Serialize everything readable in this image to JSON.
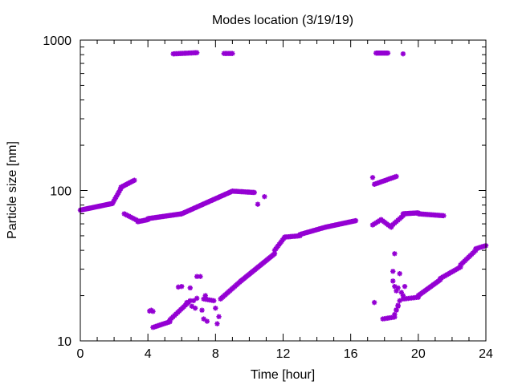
{
  "chart_data": {
    "type": "scatter",
    "title": "Modes location (3/19/19)",
    "xlabel": "Time [hour]",
    "ylabel": "Particle size [nm]",
    "xlim": [
      0,
      24
    ],
    "ylim": [
      10,
      1000
    ],
    "yscale": "log",
    "grid": false,
    "x_ticks": [
      "0",
      "4",
      "8",
      "12",
      "16",
      "20",
      "24"
    ],
    "y_ticks": [
      "10",
      "100",
      "1000"
    ],
    "color": "#9400d3",
    "marker": "asterisk",
    "segments": [
      {
        "x0": 0.0,
        "x1": 1.9,
        "y0": 74,
        "y1": 82,
        "n": 36
      },
      {
        "x0": 1.9,
        "x1": 2.4,
        "y0": 82,
        "y1": 103,
        "n": 8
      },
      {
        "x0": 2.4,
        "x1": 3.2,
        "y0": 105,
        "y1": 117,
        "n": 12
      },
      {
        "x0": 2.6,
        "x1": 3.4,
        "y0": 70,
        "y1": 63,
        "n": 10
      },
      {
        "x0": 3.4,
        "x1": 4.0,
        "y0": 62,
        "y1": 64,
        "n": 10
      },
      {
        "x0": 4.0,
        "x1": 6.0,
        "y0": 65,
        "y1": 70,
        "n": 30
      },
      {
        "x0": 6.0,
        "x1": 9.0,
        "y0": 70,
        "y1": 99,
        "n": 48
      },
      {
        "x0": 9.0,
        "x1": 10.3,
        "y0": 99,
        "y1": 97,
        "n": 18
      },
      {
        "x0": 5.5,
        "x1": 6.9,
        "y0": 810,
        "y1": 825,
        "n": 18
      },
      {
        "x0": 8.5,
        "x1": 9.0,
        "y0": 815,
        "y1": 815,
        "n": 7
      },
      {
        "x0": 4.3,
        "x1": 5.3,
        "y0": 12.3,
        "y1": 13.4,
        "n": 14
      },
      {
        "x0": 5.3,
        "x1": 6.5,
        "y0": 13.8,
        "y1": 18.5,
        "n": 14
      },
      {
        "x0": 7.3,
        "x1": 7.9,
        "y0": 19,
        "y1": 18.5,
        "n": 6
      },
      {
        "x0": 8.3,
        "x1": 9.5,
        "y0": 19,
        "y1": 25,
        "n": 18
      },
      {
        "x0": 9.5,
        "x1": 11.5,
        "y0": 25,
        "y1": 38,
        "n": 32
      },
      {
        "x0": 11.5,
        "x1": 12.1,
        "y0": 40,
        "y1": 49,
        "n": 10
      },
      {
        "x0": 12.1,
        "x1": 13.0,
        "y0": 49,
        "y1": 50,
        "n": 12
      },
      {
        "x0": 13.0,
        "x1": 14.5,
        "y0": 51,
        "y1": 57,
        "n": 24
      },
      {
        "x0": 14.5,
        "x1": 16.3,
        "y0": 57,
        "y1": 63,
        "n": 30
      },
      {
        "x0": 17.4,
        "x1": 18.7,
        "y0": 110,
        "y1": 124,
        "n": 18
      },
      {
        "x0": 17.5,
        "x1": 18.2,
        "y0": 820,
        "y1": 820,
        "n": 11
      },
      {
        "x0": 17.3,
        "x1": 17.8,
        "y0": 59,
        "y1": 64,
        "n": 6
      },
      {
        "x0": 17.8,
        "x1": 18.4,
        "y0": 64,
        "y1": 57,
        "n": 8
      },
      {
        "x0": 18.4,
        "x1": 19.1,
        "y0": 58,
        "y1": 68,
        "n": 8
      },
      {
        "x0": 19.1,
        "x1": 20.0,
        "y0": 70,
        "y1": 71,
        "n": 14
      },
      {
        "x0": 20.0,
        "x1": 21.5,
        "y0": 70,
        "y1": 68,
        "n": 20
      },
      {
        "x0": 17.9,
        "x1": 18.6,
        "y0": 14,
        "y1": 14.4,
        "n": 8
      },
      {
        "x0": 18.6,
        "x1": 18.9,
        "y0": 15,
        "y1": 18.5,
        "n": 4
      },
      {
        "x0": 19.1,
        "x1": 20.0,
        "y0": 19,
        "y1": 19.5,
        "n": 10
      },
      {
        "x0": 20.0,
        "x1": 21.3,
        "y0": 20,
        "y1": 25.5,
        "n": 20
      },
      {
        "x0": 21.3,
        "x1": 22.5,
        "y0": 26,
        "y1": 31,
        "n": 16
      },
      {
        "x0": 22.5,
        "x1": 23.4,
        "y0": 32,
        "y1": 40,
        "n": 12
      },
      {
        "x0": 23.4,
        "x1": 24.0,
        "y0": 41,
        "y1": 43,
        "n": 8
      }
    ],
    "points": [
      [
        10.5,
        81
      ],
      [
        10.9,
        91
      ],
      [
        4.1,
        15.8
      ],
      [
        4.2,
        16.0
      ],
      [
        4.3,
        15.7
      ],
      [
        5.8,
        22.8
      ],
      [
        6.0,
        23.0
      ],
      [
        6.3,
        18.0
      ],
      [
        6.6,
        17.0
      ],
      [
        6.8,
        16.5
      ],
      [
        6.5,
        22.5
      ],
      [
        6.7,
        18.5
      ],
      [
        6.9,
        19.2
      ],
      [
        6.9,
        26.8
      ],
      [
        7.1,
        26.8
      ],
      [
        7.2,
        16.0
      ],
      [
        7.3,
        14.0
      ],
      [
        7.5,
        13.5
      ],
      [
        7.4,
        20.0
      ],
      [
        8.0,
        16.5
      ],
      [
        8.1,
        13.0
      ],
      [
        8.2,
        14.5
      ],
      [
        19.1,
        810
      ],
      [
        17.3,
        122
      ],
      [
        17.4,
        18.0
      ],
      [
        18.6,
        38.0
      ],
      [
        18.5,
        29.0
      ],
      [
        18.5,
        25.0
      ],
      [
        18.6,
        23.0
      ],
      [
        18.7,
        21.5
      ],
      [
        18.8,
        22.5
      ],
      [
        18.9,
        28.0
      ],
      [
        19.0,
        21.0
      ],
      [
        19.2,
        23.0
      ],
      [
        19.1,
        20.0
      ],
      [
        18.8,
        17.0
      ],
      [
        18.7,
        16.0
      ]
    ]
  }
}
